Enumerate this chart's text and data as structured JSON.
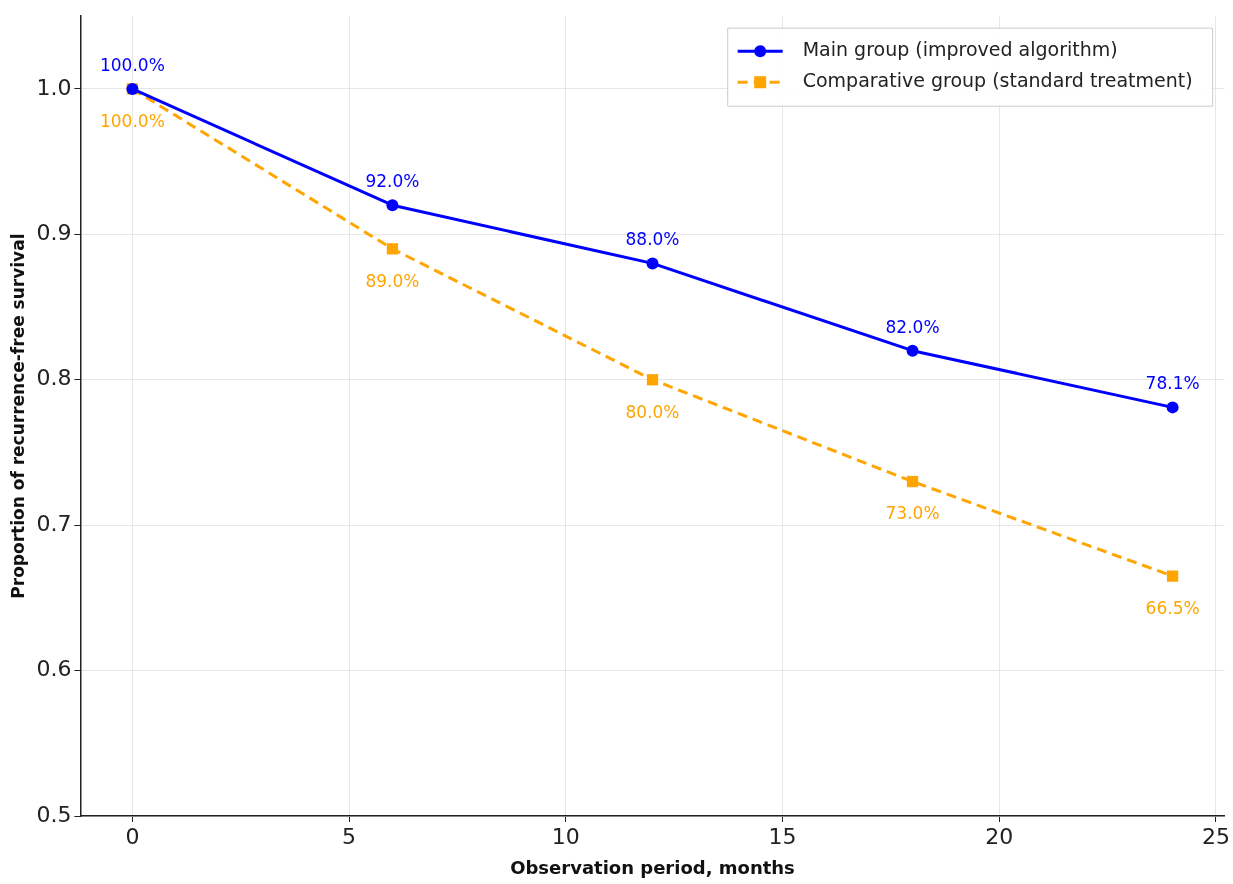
{
  "chart_data": {
    "type": "line",
    "xlabel": "Observation period, months",
    "ylabel": "Proportion of recurrence-free survival",
    "x": [
      0,
      6,
      12,
      18,
      24
    ],
    "series": [
      {
        "name": "Main group (improved algorithm)",
        "color": "#0000ff",
        "values": [
          1.0,
          0.92,
          0.88,
          0.82,
          0.781
        ],
        "marker": "circle",
        "line_style": "solid",
        "value_labels": [
          "100.0%",
          "92.0%",
          "88.0%",
          "82.0%",
          "78.1%"
        ]
      },
      {
        "name": "Comparative group (standard treatment)",
        "color": "#ffa500",
        "values": [
          1.0,
          0.89,
          0.8,
          0.73,
          0.665
        ],
        "marker": "square",
        "line_style": "dashed",
        "value_labels": [
          "100.0%",
          "89.0%",
          "80.0%",
          "73.0%",
          "66.5%"
        ]
      }
    ],
    "xlim": [
      -1.2,
      25.2
    ],
    "xticks": [
      0,
      5,
      10,
      15,
      20,
      25
    ],
    "ylim": [
      0.5,
      1.05
    ],
    "yticks": [
      0.5,
      0.6,
      0.7,
      0.8,
      0.9,
      {
        "value": 1.0,
        "label": "1.0"
      }
    ],
    "grid": true,
    "legend": "top right"
  }
}
